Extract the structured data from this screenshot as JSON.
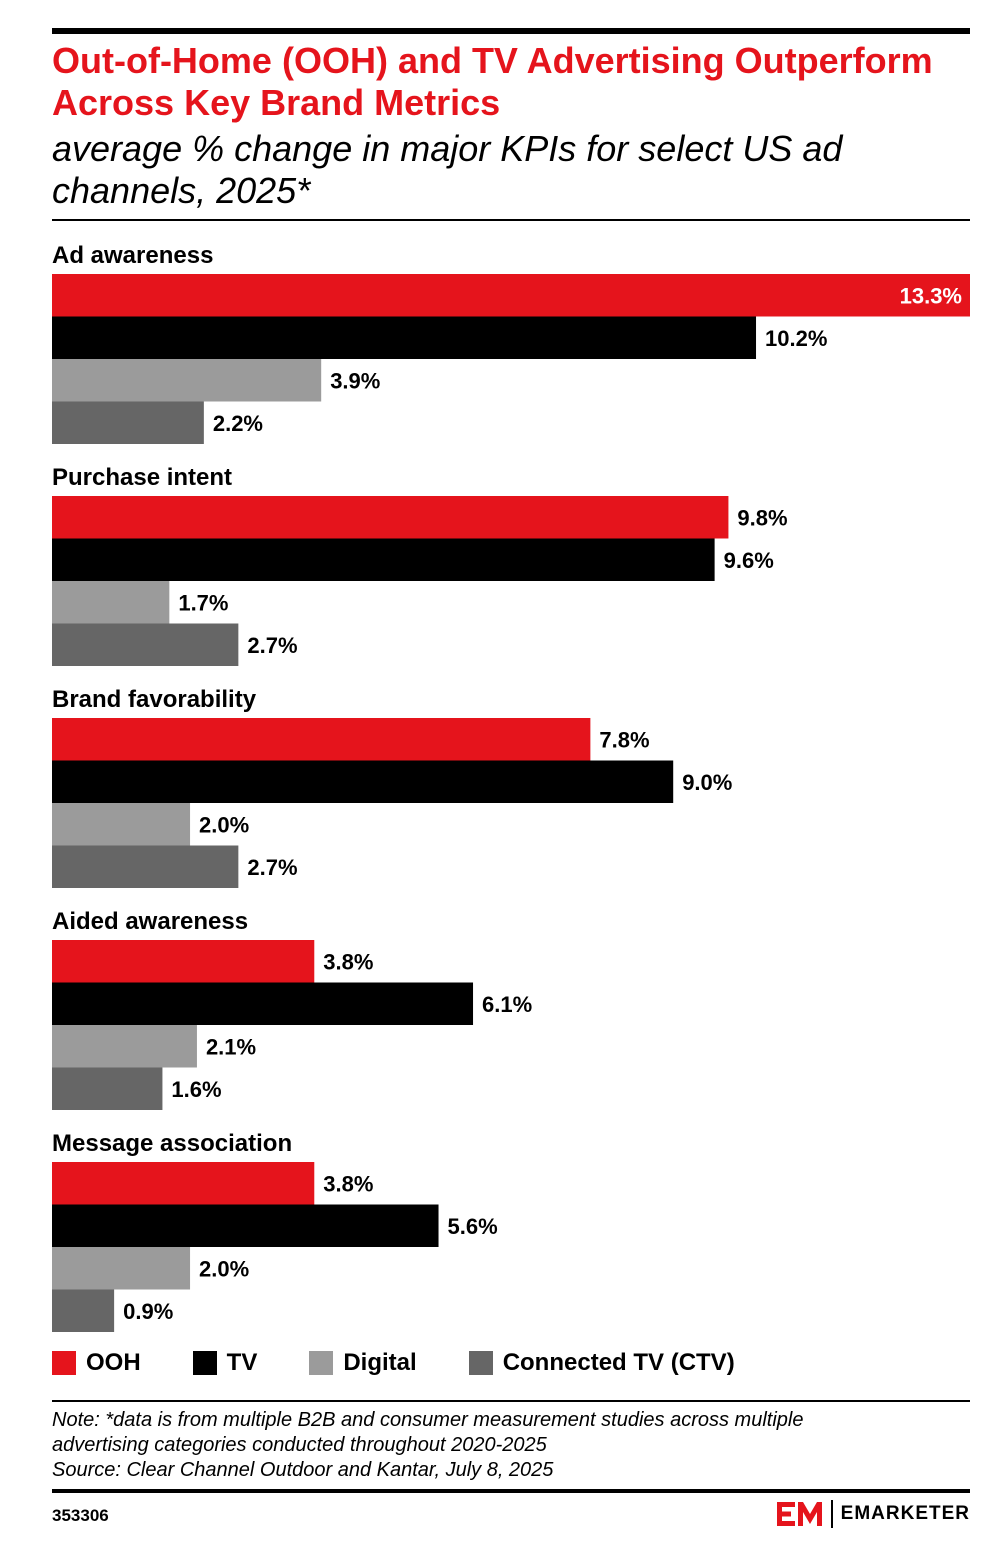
{
  "header": {
    "title": "Out-of-Home (OOH) and TV Advertising Outperform Across Key Brand Metrics",
    "subtitle": "average % change in major KPIs for select US ad channels, 2025*"
  },
  "chart_data": {
    "type": "bar",
    "orientation": "horizontal",
    "title": "Out-of-Home (OOH) and TV Advertising Outperform Across Key Brand Metrics",
    "subtitle": "average % change in major KPIs for select US ad channels, 2025*",
    "categories": [
      "Ad awareness",
      "Purchase intent",
      "Brand favorability",
      "Aided awareness",
      "Message association"
    ],
    "series": [
      {
        "name": "OOH",
        "color": "#e5141c",
        "values": [
          13.3,
          9.8,
          7.8,
          3.8,
          3.8
        ],
        "labels": [
          "13.3%",
          "9.8%",
          "7.8%",
          "3.8%",
          "3.8%"
        ]
      },
      {
        "name": "TV",
        "color": "#000000",
        "values": [
          10.2,
          9.6,
          9.0,
          6.1,
          5.6
        ],
        "labels": [
          "10.2%",
          "9.6%",
          "9.0%",
          "6.1%",
          "5.6%"
        ]
      },
      {
        "name": "Digital",
        "color": "#9b9b9b",
        "values": [
          3.9,
          1.7,
          2.0,
          2.1,
          2.0
        ],
        "labels": [
          "3.9%",
          "1.7%",
          "2.0%",
          "2.1%",
          "2.0%"
        ]
      },
      {
        "name": "Connected TV (CTV)",
        "color": "#666666",
        "values": [
          2.2,
          2.7,
          2.7,
          1.6,
          0.9
        ],
        "labels": [
          "2.2%",
          "2.7%",
          "2.7%",
          "1.6%",
          "0.9%"
        ]
      }
    ],
    "xlim": [
      0,
      13.3
    ],
    "grid": false,
    "legend": "bottom"
  },
  "footer": {
    "note_line1": "Note: *data is from multiple B2B and consumer measurement studies across multiple",
    "note_line2": "advertising categories conducted throughout 2020-2025",
    "source": "Source: Clear Channel Outdoor and Kantar, July 8, 2025",
    "chart_id": "353306",
    "brand": "EMARKETER",
    "brand_color": "#e5141c"
  }
}
